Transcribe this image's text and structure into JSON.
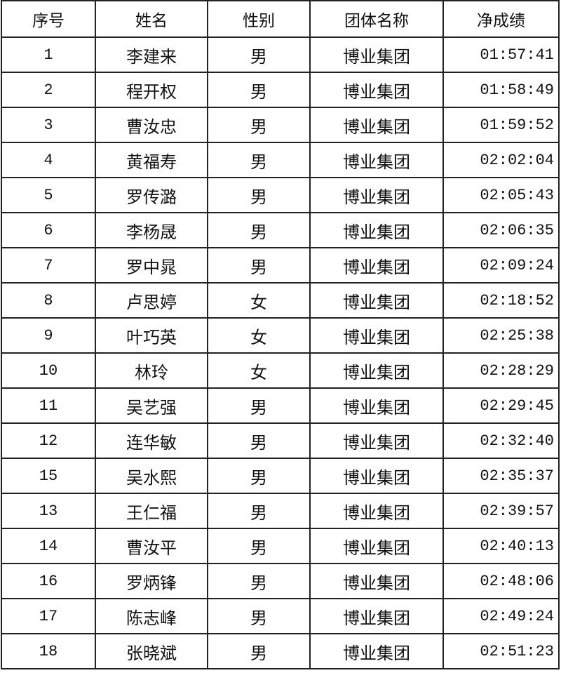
{
  "table": {
    "headers": [
      "序号",
      "姓名",
      "性别",
      "团体名称",
      "净成绩"
    ],
    "rows": [
      [
        "1",
        "李建来",
        "男",
        "博业集团",
        "01:57:41"
      ],
      [
        "2",
        "程开权",
        "男",
        "博业集团",
        "01:58:49"
      ],
      [
        "3",
        "曹汝忠",
        "男",
        "博业集团",
        "01:59:52"
      ],
      [
        "4",
        "黄福寿",
        "男",
        "博业集团",
        "02:02:04"
      ],
      [
        "5",
        "罗传潞",
        "男",
        "博业集团",
        "02:05:43"
      ],
      [
        "6",
        "李杨晟",
        "男",
        "博业集团",
        "02:06:35"
      ],
      [
        "7",
        "罗中晁",
        "男",
        "博业集团",
        "02:09:24"
      ],
      [
        "8",
        "卢思婷",
        "女",
        "博业集团",
        "02:18:52"
      ],
      [
        "9",
        "叶巧英",
        "女",
        "博业集团",
        "02:25:38"
      ],
      [
        "10",
        "林玲",
        "女",
        "博业集团",
        "02:28:29"
      ],
      [
        "11",
        "吴艺强",
        "男",
        "博业集团",
        "02:29:45"
      ],
      [
        "12",
        "连华敏",
        "男",
        "博业集团",
        "02:32:40"
      ],
      [
        "15",
        "吴水熙",
        "男",
        "博业集团",
        "02:35:37"
      ],
      [
        "13",
        "王仁福",
        "男",
        "博业集团",
        "02:39:57"
      ],
      [
        "14",
        "曹汝平",
        "男",
        "博业集团",
        "02:40:13"
      ],
      [
        "16",
        "罗炳锋",
        "男",
        "博业集团",
        "02:48:06"
      ],
      [
        "17",
        "陈志峰",
        "男",
        "博业集团",
        "02:49:24"
      ],
      [
        "18",
        "张晓斌",
        "男",
        "博业集团",
        "02:51:23"
      ]
    ]
  }
}
